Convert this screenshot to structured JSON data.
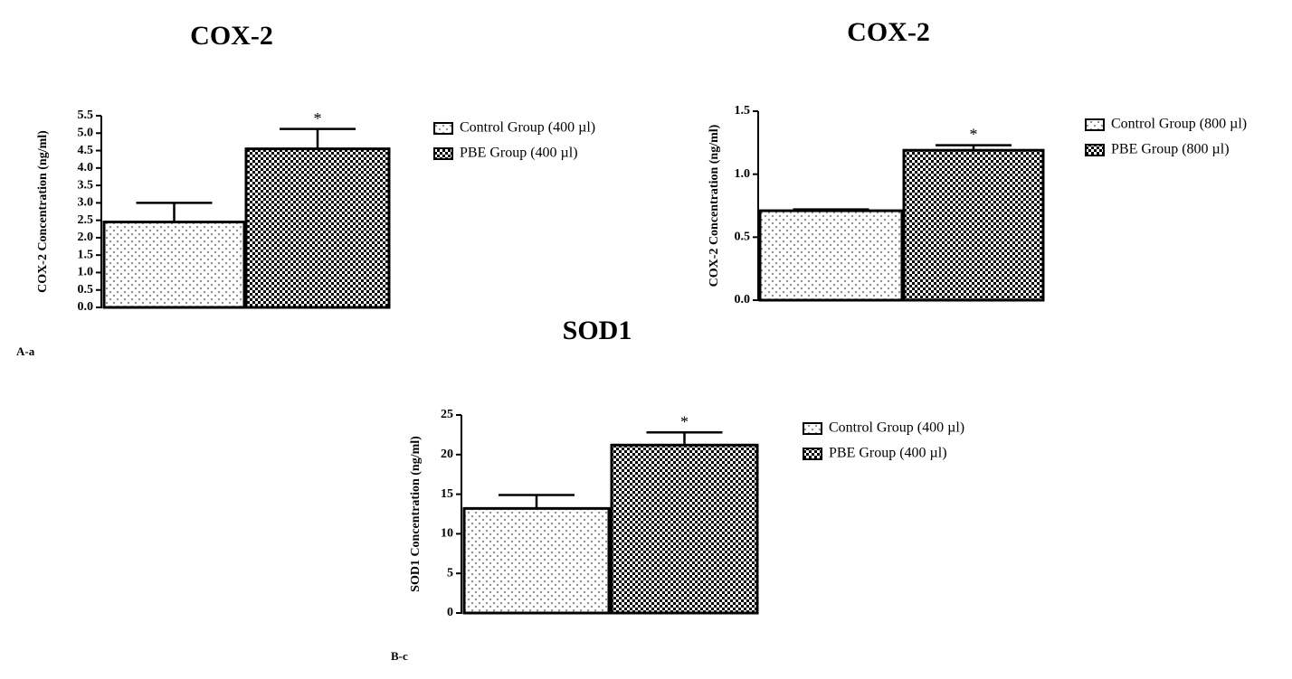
{
  "chart_data": [
    {
      "type": "bar",
      "title": "COX-2",
      "y_label": "COX-2 Concentration (ng/ml)",
      "panel_label": "A-a",
      "ylim": [
        0,
        5.5
      ],
      "yticks": [
        {
          "value": 0,
          "label": "0.0"
        },
        {
          "value": 0.5,
          "label": "0.5"
        },
        {
          "value": 1,
          "label": "1.0"
        },
        {
          "value": 1.5,
          "label": "1.5"
        },
        {
          "value": 2,
          "label": "2.0"
        },
        {
          "value": 2.5,
          "label": "2.5"
        },
        {
          "value": 3,
          "label": "3.0"
        },
        {
          "value": 3.5,
          "label": "3.5"
        },
        {
          "value": 4,
          "label": "4.0"
        },
        {
          "value": 4.5,
          "label": "4.5"
        },
        {
          "value": 5,
          "label": "5.0"
        },
        {
          "value": 5.5,
          "label": "5.5"
        }
      ],
      "series": [
        {
          "name": "Control Group (400 µl)",
          "color": "#000000",
          "pattern": "dots",
          "values": [
            2.45
          ],
          "errors": [
            0.55
          ]
        },
        {
          "name": "PBE Group (400 µl)",
          "color": "#000000",
          "pattern": "checker",
          "values": [
            4.55
          ],
          "errors": [
            0.57
          ],
          "annotation": "*"
        }
      ]
    },
    {
      "type": "bar",
      "title": "COX-2",
      "y_label": "COX-2 Concentration (ng/ml)",
      "ylim": [
        0,
        1.5
      ],
      "yticks": [
        {
          "value": 0,
          "label": "0.0"
        },
        {
          "value": 0.5,
          "label": "0.5"
        },
        {
          "value": 1,
          "label": "1.0"
        },
        {
          "value": 1.5,
          "label": "1.5"
        }
      ],
      "series": [
        {
          "name": "Control Group (800 µl)",
          "color": "#000000",
          "pattern": "dots",
          "values": [
            0.71
          ],
          "errors": [
            0.01
          ]
        },
        {
          "name": "PBE Group (800 µl)",
          "color": "#000000",
          "pattern": "checker",
          "values": [
            1.19
          ],
          "errors": [
            0.04
          ],
          "annotation": "*"
        }
      ]
    },
    {
      "type": "bar",
      "title": "SOD1",
      "y_label": "SOD1 Concentration (ng/ml)",
      "panel_label": "B-c",
      "ylim": [
        0,
        25
      ],
      "yticks": [
        0,
        5,
        10,
        15,
        20,
        25
      ],
      "series": [
        {
          "name": "Control Group (400 µl)",
          "color": "#000000",
          "pattern": "dots",
          "values": [
            13.2
          ],
          "errors": [
            1.7
          ]
        },
        {
          "name": "PBE Group (400 µl)",
          "color": "#000000",
          "pattern": "checker",
          "values": [
            21.2
          ],
          "errors": [
            1.6
          ],
          "annotation": "*"
        }
      ]
    }
  ]
}
